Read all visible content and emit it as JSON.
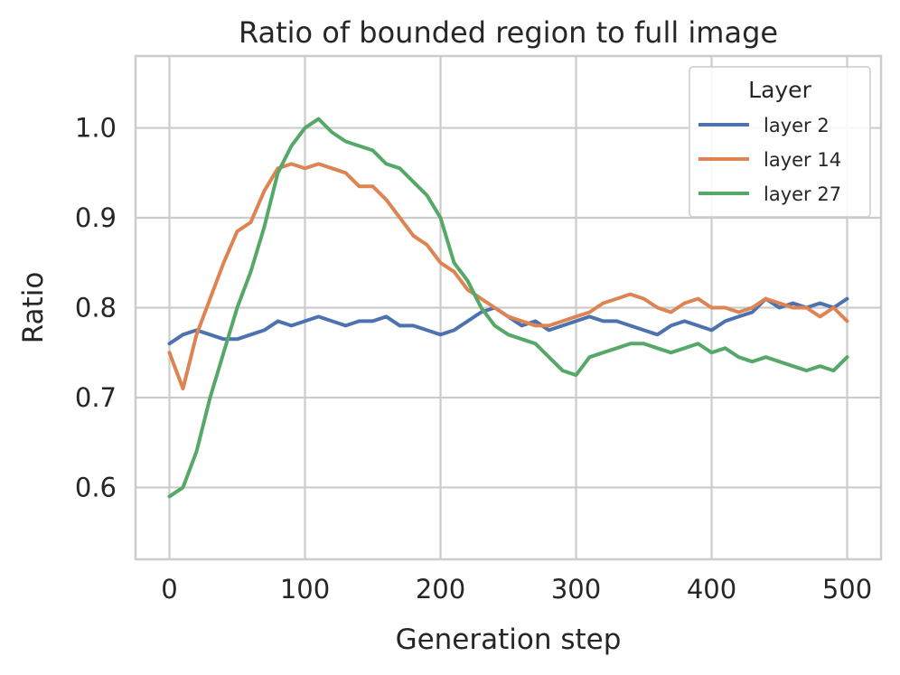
{
  "chart_data": {
    "type": "line",
    "title": "Ratio of bounded region to full image",
    "xlabel": "Generation step",
    "ylabel": "Ratio",
    "xlim": [
      -25,
      525
    ],
    "ylim": [
      0.52,
      1.08
    ],
    "xticks": [
      0,
      100,
      200,
      300,
      400,
      500
    ],
    "xtick_labels": [
      "0",
      "100",
      "200",
      "300",
      "400",
      "500"
    ],
    "yticks": [
      0.6,
      0.7,
      0.8,
      0.9,
      1.0
    ],
    "ytick_labels": [
      "0.6",
      "0.7",
      "0.8",
      "0.9",
      "1.0"
    ],
    "grid": true,
    "legend": {
      "title": "Layer",
      "placement": "top-right"
    },
    "x": [
      0,
      10,
      20,
      30,
      40,
      50,
      60,
      70,
      80,
      90,
      100,
      110,
      120,
      130,
      140,
      150,
      160,
      170,
      180,
      190,
      200,
      210,
      220,
      230,
      240,
      250,
      260,
      270,
      280,
      290,
      300,
      310,
      320,
      330,
      340,
      350,
      360,
      370,
      380,
      390,
      400,
      410,
      420,
      430,
      440,
      450,
      460,
      470,
      480,
      490,
      500
    ],
    "series": [
      {
        "name": "layer 2",
        "color": "#4c72b0",
        "values": [
          0.76,
          0.77,
          0.775,
          0.77,
          0.765,
          0.765,
          0.77,
          0.775,
          0.785,
          0.78,
          0.785,
          0.79,
          0.785,
          0.78,
          0.785,
          0.785,
          0.79,
          0.78,
          0.78,
          0.775,
          0.77,
          0.775,
          0.785,
          0.795,
          0.8,
          0.79,
          0.78,
          0.785,
          0.775,
          0.78,
          0.785,
          0.79,
          0.785,
          0.785,
          0.78,
          0.775,
          0.77,
          0.78,
          0.785,
          0.78,
          0.775,
          0.785,
          0.79,
          0.795,
          0.81,
          0.8,
          0.805,
          0.8,
          0.805,
          0.8,
          0.81
        ]
      },
      {
        "name": "layer 14",
        "color": "#dd8452",
        "values": [
          0.75,
          0.71,
          0.77,
          0.81,
          0.85,
          0.885,
          0.895,
          0.93,
          0.955,
          0.96,
          0.955,
          0.96,
          0.955,
          0.95,
          0.935,
          0.935,
          0.92,
          0.9,
          0.88,
          0.87,
          0.85,
          0.84,
          0.82,
          0.81,
          0.8,
          0.79,
          0.785,
          0.78,
          0.78,
          0.785,
          0.79,
          0.795,
          0.805,
          0.81,
          0.815,
          0.81,
          0.8,
          0.795,
          0.805,
          0.81,
          0.8,
          0.8,
          0.795,
          0.8,
          0.81,
          0.805,
          0.8,
          0.8,
          0.79,
          0.8,
          0.785
        ]
      },
      {
        "name": "layer 27",
        "color": "#55a868",
        "values": [
          0.59,
          0.6,
          0.64,
          0.7,
          0.75,
          0.8,
          0.84,
          0.89,
          0.95,
          0.98,
          1.0,
          1.01,
          0.995,
          0.985,
          0.98,
          0.975,
          0.96,
          0.955,
          0.94,
          0.925,
          0.9,
          0.85,
          0.83,
          0.8,
          0.78,
          0.77,
          0.765,
          0.76,
          0.745,
          0.73,
          0.725,
          0.745,
          0.75,
          0.755,
          0.76,
          0.76,
          0.755,
          0.75,
          0.755,
          0.76,
          0.75,
          0.755,
          0.745,
          0.74,
          0.745,
          0.74,
          0.735,
          0.73,
          0.735,
          0.73,
          0.745
        ]
      }
    ]
  }
}
